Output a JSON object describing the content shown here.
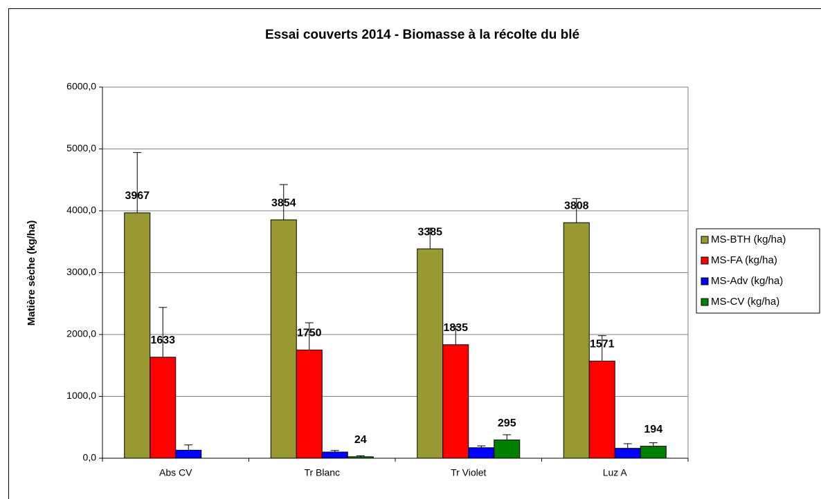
{
  "chart_data": {
    "type": "bar",
    "title": "Essai couverts 2014 - Biomasse à la récolte du blé",
    "y_axis_label": "Matière sèche (kg/ha)",
    "categories": [
      "Abs CV",
      "Tr Blanc",
      "Tr Violet",
      "Luz A"
    ],
    "series": [
      {
        "name": "MS-BTH (kg/ha)",
        "color": "#999933",
        "values": [
          3967,
          3854,
          3385,
          3808
        ],
        "errors": [
          975,
          570,
          335,
          390
        ],
        "show_labels": true
      },
      {
        "name": "MS-FA (kg/ha)",
        "color": "#ff0000",
        "values": [
          1633,
          1750,
          1835,
          1571
        ],
        "errors": [
          805,
          440,
          295,
          410
        ],
        "show_labels": true
      },
      {
        "name": "MS-Adv (kg/ha)",
        "color": "#0000ff",
        "values": [
          130,
          100,
          170,
          160
        ],
        "errors": [
          85,
          25,
          30,
          75
        ],
        "show_labels": false
      },
      {
        "name": "MS-CV (kg/ha)",
        "color": "#008000",
        "values": [
          null,
          24,
          295,
          194
        ],
        "errors": [
          null,
          16,
          85,
          56
        ],
        "show_labels": true
      }
    ],
    "ylim": [
      0,
      6000
    ],
    "yticks": [
      {
        "value": 0,
        "label": "0,0"
      },
      {
        "value": 1000,
        "label": "1000,0"
      },
      {
        "value": 2000,
        "label": "2000,0"
      },
      {
        "value": 3000,
        "label": "3000,0"
      },
      {
        "value": 4000,
        "label": "4000,0"
      },
      {
        "value": 5000,
        "label": "5000,0"
      },
      {
        "value": 6000,
        "label": "6000,0"
      }
    ],
    "grid": true,
    "legend": "right"
  }
}
